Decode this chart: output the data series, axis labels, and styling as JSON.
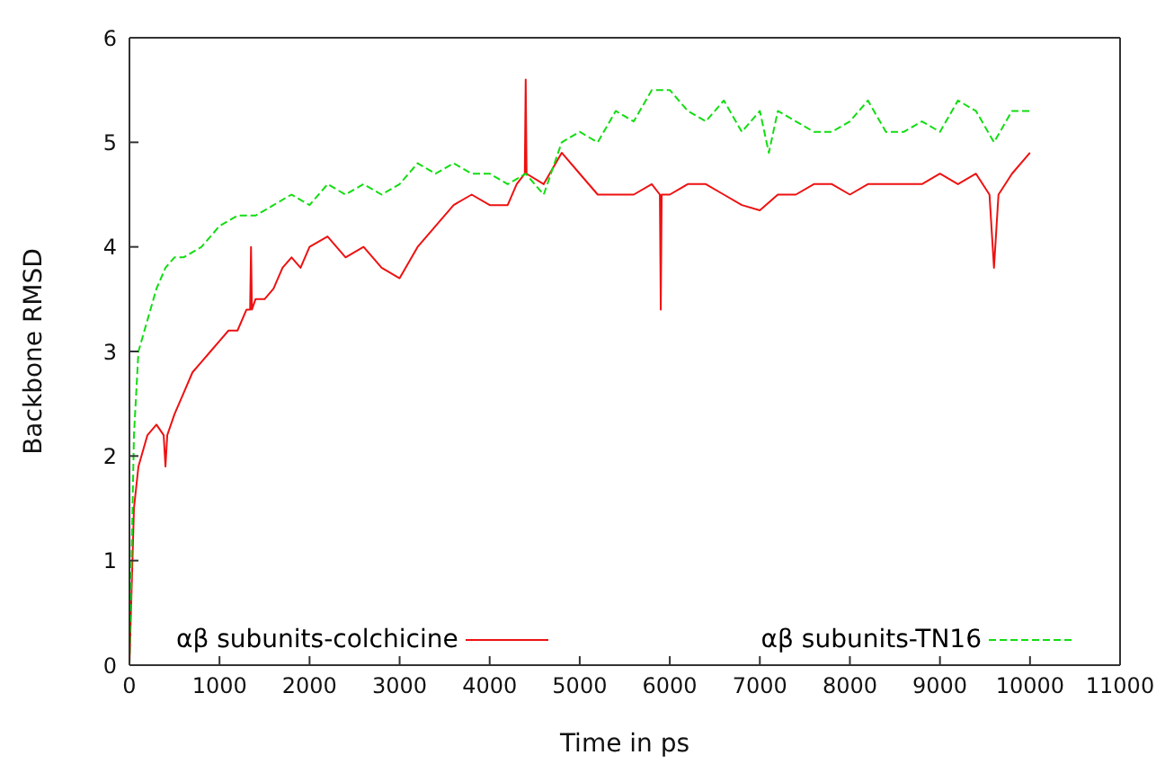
{
  "chart_data": {
    "type": "line",
    "xlabel": "Time in ps",
    "ylabel": "Backbone RMSD",
    "xlim": [
      0,
      11000
    ],
    "xticks": [
      0,
      1000,
      2000,
      3000,
      4000,
      5000,
      6000,
      7000,
      8000,
      9000,
      10000,
      11000
    ],
    "ylim": [
      0,
      6
    ],
    "yticks": [
      0,
      1,
      2,
      3,
      4,
      5,
      6
    ],
    "legend": "bottom",
    "marker": "none",
    "series": [
      {
        "name": "αβ subunits-colchicine",
        "color": "#ee1111",
        "line_style": "solid",
        "x": [
          0,
          50,
          100,
          200,
          300,
          380,
          400,
          420,
          500,
          600,
          700,
          800,
          900,
          1000,
          1100,
          1200,
          1300,
          1340,
          1350,
          1360,
          1400,
          1500,
          1600,
          1700,
          1800,
          1900,
          2000,
          2200,
          2400,
          2600,
          2800,
          3000,
          3200,
          3400,
          3600,
          3800,
          4000,
          4200,
          4300,
          4390,
          4400,
          4410,
          4600,
          4800,
          5000,
          5200,
          5400,
          5600,
          5800,
          5890,
          5900,
          5910,
          6000,
          6200,
          6400,
          6600,
          6800,
          7000,
          7200,
          7400,
          7600,
          7800,
          8000,
          8200,
          8400,
          8600,
          8800,
          9000,
          9200,
          9400,
          9550,
          9600,
          9650,
          9800,
          10000
        ],
        "values": [
          0,
          1.5,
          1.9,
          2.2,
          2.3,
          2.2,
          1.9,
          2.2,
          2.4,
          2.6,
          2.8,
          2.9,
          3.0,
          3.1,
          3.2,
          3.2,
          3.4,
          3.4,
          4.0,
          3.4,
          3.5,
          3.5,
          3.6,
          3.8,
          3.9,
          3.8,
          4.0,
          4.1,
          3.9,
          4.0,
          3.8,
          3.7,
          4.0,
          4.2,
          4.4,
          4.5,
          4.4,
          4.4,
          4.6,
          4.7,
          5.6,
          4.7,
          4.6,
          4.9,
          4.7,
          4.5,
          4.5,
          4.5,
          4.6,
          4.5,
          3.4,
          4.5,
          4.5,
          4.6,
          4.6,
          4.5,
          4.4,
          4.35,
          4.5,
          4.5,
          4.6,
          4.6,
          4.5,
          4.6,
          4.6,
          4.6,
          4.6,
          4.7,
          4.6,
          4.7,
          4.5,
          3.8,
          4.5,
          4.7,
          4.9
        ]
      },
      {
        "name": "αβ subunits-TN16",
        "color": "#11dd11",
        "line_style": "dashed",
        "x": [
          0,
          50,
          100,
          200,
          300,
          400,
          500,
          600,
          800,
          1000,
          1200,
          1400,
          1600,
          1800,
          2000,
          2200,
          2400,
          2600,
          2800,
          3000,
          3200,
          3400,
          3600,
          3800,
          4000,
          4200,
          4400,
          4600,
          4800,
          5000,
          5200,
          5400,
          5600,
          5800,
          6000,
          6200,
          6400,
          6600,
          6800,
          7000,
          7100,
          7200,
          7400,
          7600,
          7800,
          8000,
          8200,
          8400,
          8600,
          8800,
          9000,
          9200,
          9400,
          9600,
          9800,
          10000
        ],
        "values": [
          0,
          2.2,
          3.0,
          3.3,
          3.6,
          3.8,
          3.9,
          3.9,
          4.0,
          4.2,
          4.3,
          4.3,
          4.4,
          4.5,
          4.4,
          4.6,
          4.5,
          4.6,
          4.5,
          4.6,
          4.8,
          4.7,
          4.8,
          4.7,
          4.7,
          4.6,
          4.7,
          4.5,
          5.0,
          5.1,
          5.0,
          5.3,
          5.2,
          5.5,
          5.5,
          5.3,
          5.2,
          5.4,
          5.1,
          5.3,
          4.9,
          5.3,
          5.2,
          5.1,
          5.1,
          5.2,
          5.4,
          5.1,
          5.1,
          5.2,
          5.1,
          5.4,
          5.3,
          5.0,
          5.3,
          5.3
        ]
      }
    ]
  }
}
